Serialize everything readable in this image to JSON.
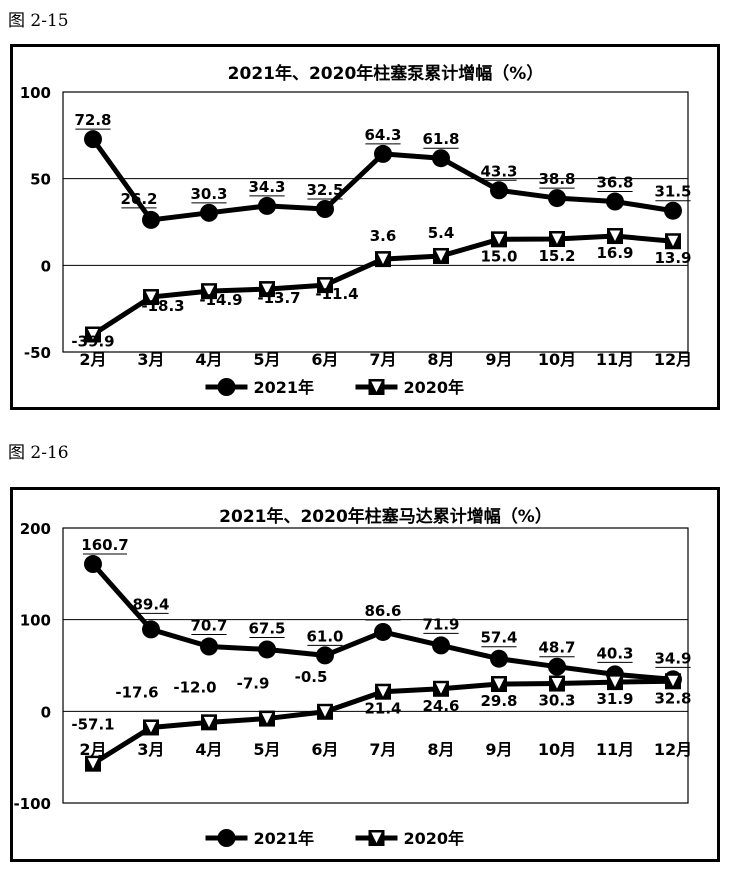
{
  "captions": {
    "fig1": "图 2-15",
    "fig2": "图 2-16"
  },
  "chart_data": [
    {
      "type": "line",
      "title": "2021年、2020年柱塞泵累计增幅（%）",
      "categories": [
        "2月",
        "3月",
        "4月",
        "5月",
        "6月",
        "7月",
        "8月",
        "9月",
        "10月",
        "11月",
        "12月"
      ],
      "ylim": [
        -50,
        100
      ],
      "yticks": [
        -50,
        0,
        50,
        100
      ],
      "grid": "horizontal",
      "legend": "bottom",
      "series": [
        {
          "name": "2021年",
          "marker": "circle",
          "values": [
            72.8,
            26.2,
            30.3,
            34.3,
            32.5,
            64.3,
            61.8,
            43.3,
            38.8,
            36.8,
            31.5
          ]
        },
        {
          "name": "2020年",
          "marker": "triangle-down",
          "values": [
            -39.9,
            -18.3,
            -14.9,
            -13.7,
            -11.4,
            3.6,
            5.4,
            15.0,
            15.2,
            16.9,
            13.9
          ]
        }
      ]
    },
    {
      "type": "line",
      "title": "2021年、2020年柱塞马达累计增幅（%）",
      "categories": [
        "2月",
        "3月",
        "4月",
        "5月",
        "6月",
        "7月",
        "8月",
        "9月",
        "10月",
        "11月",
        "12月"
      ],
      "ylim": [
        -100,
        200
      ],
      "yticks": [
        -100,
        0,
        100,
        200
      ],
      "grid": "horizontal",
      "legend": "bottom",
      "series": [
        {
          "name": "2021年",
          "marker": "circle",
          "values": [
            160.7,
            89.4,
            70.7,
            67.5,
            61.0,
            86.6,
            71.9,
            57.4,
            48.7,
            40.3,
            34.9
          ]
        },
        {
          "name": "2020年",
          "marker": "triangle-down",
          "values": [
            -57.1,
            -17.6,
            -12.0,
            -7.9,
            -0.5,
            21.4,
            24.6,
            29.8,
            30.3,
            31.9,
            32.8
          ]
        }
      ]
    }
  ],
  "colors": {
    "line": "#000000",
    "grid": "#000000",
    "background": "#ffffff"
  }
}
